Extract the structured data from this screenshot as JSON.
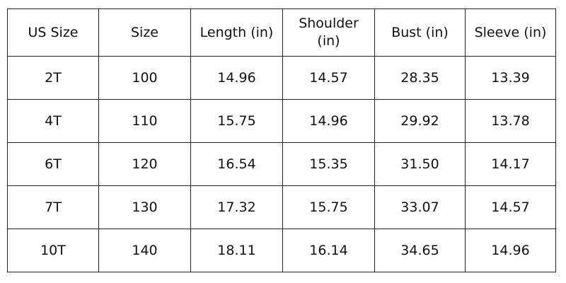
{
  "table": {
    "headers": [
      "US Size",
      "Size",
      "Length (in)",
      "Shoulder (in)",
      "Bust (in)",
      "Sleeve (in)"
    ],
    "rows": [
      [
        "2T",
        "100",
        "14.96",
        "14.57",
        "28.35",
        "13.39"
      ],
      [
        "4T",
        "110",
        "15.75",
        "14.96",
        "29.92",
        "13.78"
      ],
      [
        "6T",
        "120",
        "16.54",
        "15.35",
        "31.50",
        "14.17"
      ],
      [
        "7T",
        "130",
        "17.32",
        "15.75",
        "33.07",
        "14.57"
      ],
      [
        "10T",
        "140",
        "18.11",
        "16.14",
        "34.65",
        "14.96"
      ]
    ]
  }
}
